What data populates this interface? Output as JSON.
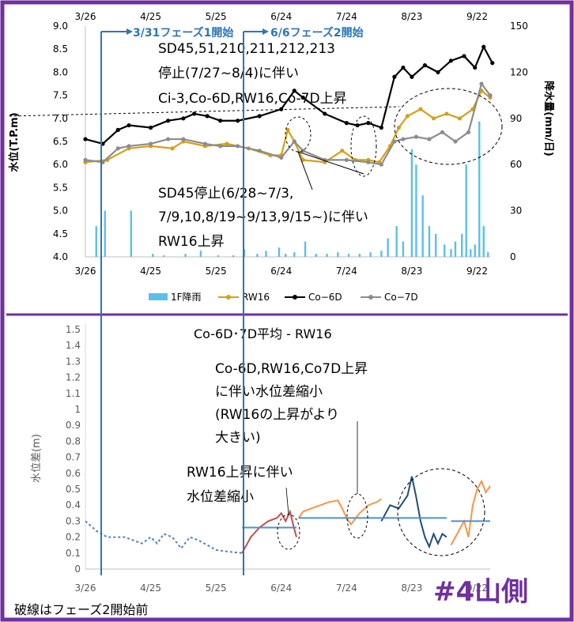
{
  "colors": {
    "frame": "#7030a0",
    "rain": "#5bc0e8",
    "rw16": "#d4a017",
    "co6d": "#000000",
    "co7d": "#8c8c8c",
    "phase": "#2e75b6",
    "pre": "#4f81bd",
    "seg1": "#c0504d",
    "seg2": "#f79646",
    "seg3": "#1f4e79",
    "avg": "#4f8fcf",
    "label_purple": "#7030a0"
  },
  "phase_labels": {
    "phase1": "3/31フェーズ1開始",
    "phase2": "6/6フェーズ2開始"
  },
  "annotations": {
    "top_1": "SD45,51,210,211,212,213",
    "top_2": "停止(7/27~8/4)に伴い",
    "top_3": "Ci-3,Co-6D,RW16,Co-7D上昇",
    "mid_1": "SD45停止(6/28~7/3,",
    "mid_2": "7/9,10,8/19~9/13,9/15~)に伴い",
    "mid_3": "RW16上昇",
    "bot_title": "Co-6D･7D平均 - RW16",
    "bot_1": "Co-6D,RW16,Co7D上昇",
    "bot_2": "に伴い水位差縮小",
    "bot_3": "(RW16の上昇がより",
    "bot_4": "大きい)",
    "bot_5": "RW16上昇に伴い",
    "bot_6": "水位差縮小",
    "footnote": "破線はフェーズ2開始前",
    "badge": "#4山側"
  },
  "chart_data": [
    {
      "type": "line",
      "title": "",
      "ylabel": "水位(T.P.m)",
      "y2label": "降水量(mm/日)",
      "xlabel": "",
      "ylim": [
        4.0,
        9.0
      ],
      "y2lim": [
        0,
        150
      ],
      "yticks": [
        "9.0",
        "8.5",
        "8.0",
        "7.5",
        "7.0",
        "6.5",
        "6.0",
        "5.5",
        "5.0",
        "4.5",
        "4.0"
      ],
      "y2ticks": [
        "150",
        "120",
        "90",
        "60",
        "30",
        "0"
      ],
      "xticks": [
        "3/26",
        "4/25",
        "5/25",
        "6/24",
        "7/24",
        "8/23",
        "9/22"
      ],
      "x_day_offsets_from_3_26": [
        0,
        30,
        60,
        90,
        120,
        150,
        180
      ],
      "legend": [
        "1F降雨",
        "RW16",
        "Co−6D",
        "Co−7D"
      ],
      "legend_position": "bottom",
      "rain_mm": [
        [
          5,
          20
        ],
        [
          9,
          30
        ],
        [
          21,
          30
        ],
        [
          31,
          2
        ],
        [
          36,
          1
        ],
        [
          46,
          2
        ],
        [
          53,
          4
        ],
        [
          61,
          1
        ],
        [
          68,
          1
        ],
        [
          73,
          5
        ],
        [
          79,
          2
        ],
        [
          83,
          4
        ],
        [
          89,
          6
        ],
        [
          92,
          2
        ],
        [
          96,
          3
        ],
        [
          101,
          10
        ],
        [
          106,
          2
        ],
        [
          111,
          2
        ],
        [
          116,
          3
        ],
        [
          121,
          2
        ],
        [
          126,
          2
        ],
        [
          131,
          3
        ],
        [
          136,
          4
        ],
        [
          139,
          12
        ],
        [
          143,
          20
        ],
        [
          146,
          10
        ],
        [
          150,
          70
        ],
        [
          152,
          60
        ],
        [
          155,
          40
        ],
        [
          158,
          20
        ],
        [
          161,
          15
        ],
        [
          165,
          8
        ],
        [
          168,
          5
        ],
        [
          170,
          10
        ],
        [
          173,
          15
        ],
        [
          175,
          60
        ],
        [
          177,
          5
        ],
        [
          179,
          8
        ],
        [
          181,
          88
        ],
        [
          183,
          20
        ],
        [
          185,
          3
        ]
      ],
      "series": [
        {
          "name": "RW16",
          "points": [
            [
              0,
              6.05
            ],
            [
              10,
              6.1
            ],
            [
              20,
              6.35
            ],
            [
              30,
              6.4
            ],
            [
              40,
              6.35
            ],
            [
              45,
              6.5
            ],
            [
              55,
              6.4
            ],
            [
              65,
              6.45
            ],
            [
              75,
              6.35
            ],
            [
              85,
              6.2
            ],
            [
              90,
              6.2
            ],
            [
              93,
              6.75
            ],
            [
              96,
              6.5
            ],
            [
              100,
              6.1
            ],
            [
              110,
              6.05
            ],
            [
              118,
              6.3
            ],
            [
              124,
              6.1
            ],
            [
              130,
              6.1
            ],
            [
              135,
              6.05
            ],
            [
              140,
              6.4
            ],
            [
              144,
              6.8
            ],
            [
              148,
              7.05
            ],
            [
              154,
              7.2
            ],
            [
              160,
              7.0
            ],
            [
              166,
              7.1
            ],
            [
              172,
              7.0
            ],
            [
              178,
              7.2
            ],
            [
              182,
              7.6
            ],
            [
              186,
              7.45
            ]
          ]
        },
        {
          "name": "Co−6D",
          "points": [
            [
              0,
              6.55
            ],
            [
              8,
              6.45
            ],
            [
              15,
              6.75
            ],
            [
              20,
              6.85
            ],
            [
              30,
              6.8
            ],
            [
              38,
              6.95
            ],
            [
              45,
              7.0
            ],
            [
              50,
              7.1
            ],
            [
              56,
              7.05
            ],
            [
              62,
              6.95
            ],
            [
              70,
              6.95
            ],
            [
              80,
              7.05
            ],
            [
              90,
              7.2
            ],
            [
              96,
              7.6
            ],
            [
              100,
              7.45
            ],
            [
              110,
              7.1
            ],
            [
              120,
              6.9
            ],
            [
              125,
              6.85
            ],
            [
              130,
              6.9
            ],
            [
              136,
              6.8
            ],
            [
              142,
              7.9
            ],
            [
              146,
              8.1
            ],
            [
              150,
              7.9
            ],
            [
              156,
              8.15
            ],
            [
              162,
              8.0
            ],
            [
              168,
              8.25
            ],
            [
              174,
              8.35
            ],
            [
              179,
              8.1
            ],
            [
              183,
              8.55
            ],
            [
              187,
              8.2
            ]
          ]
        },
        {
          "name": "Co−7D",
          "points": [
            [
              0,
              6.1
            ],
            [
              8,
              6.05
            ],
            [
              15,
              6.35
            ],
            [
              20,
              6.4
            ],
            [
              30,
              6.45
            ],
            [
              38,
              6.55
            ],
            [
              45,
              6.55
            ],
            [
              55,
              6.45
            ],
            [
              62,
              6.4
            ],
            [
              70,
              6.4
            ],
            [
              80,
              6.3
            ],
            [
              90,
              6.15
            ],
            [
              96,
              6.5
            ],
            [
              100,
              6.3
            ],
            [
              110,
              6.1
            ],
            [
              120,
              6.1
            ],
            [
              130,
              6.05
            ],
            [
              136,
              6.0
            ],
            [
              142,
              6.5
            ],
            [
              146,
              6.55
            ],
            [
              152,
              6.6
            ],
            [
              158,
              6.55
            ],
            [
              164,
              6.7
            ],
            [
              170,
              6.5
            ],
            [
              176,
              6.7
            ],
            [
              182,
              7.75
            ],
            [
              186,
              7.5
            ]
          ]
        }
      ]
    },
    {
      "type": "line",
      "title": "Co-6D･7D平均 - RW16",
      "ylabel": "水位差(m)",
      "xlabel": "",
      "ylim": [
        0,
        1.5
      ],
      "yticks": [
        "1.5",
        "1.4",
        "1.3",
        "1.2",
        "1.1",
        "1",
        "0.9",
        "0.8",
        "0.7",
        "0.6",
        "0.5",
        "0.4",
        "0.3",
        "0.2",
        "0.1",
        "0"
      ],
      "xticks": [
        "3/26",
        "4/25",
        "5/25",
        "6/24",
        "7/24",
        "8/23",
        "9/22"
      ],
      "x_day_offsets_from_3_26": [
        0,
        30,
        60,
        90,
        120,
        150,
        180
      ],
      "series": [
        {
          "name": "",
          "style": "dashed",
          "points": [
            [
              0,
              0.3
            ],
            [
              5,
              0.24
            ],
            [
              10,
              0.2
            ],
            [
              18,
              0.2
            ],
            [
              26,
              0.16
            ],
            [
              30,
              0.2
            ],
            [
              33,
              0.16
            ],
            [
              36,
              0.22
            ],
            [
              40,
              0.2
            ],
            [
              44,
              0.13
            ],
            [
              48,
              0.2
            ],
            [
              52,
              0.18
            ],
            [
              60,
              0.12
            ],
            [
              65,
              0.11
            ],
            [
              72,
              0.1
            ]
          ]
        },
        {
          "name": "",
          "style": "solid",
          "points": [
            [
              72,
              0.1
            ],
            [
              76,
              0.2
            ],
            [
              80,
              0.26
            ],
            [
              84,
              0.3
            ],
            [
              88,
              0.32
            ],
            [
              90,
              0.35
            ],
            [
              92,
              0.3
            ],
            [
              94,
              0.36
            ],
            [
              96,
              0.25
            ],
            [
              97,
              0.2
            ]
          ]
        },
        {
          "name": "",
          "style": "solid",
          "points": [
            [
              98,
              0.32
            ],
            [
              100,
              0.36
            ],
            [
              104,
              0.38
            ],
            [
              108,
              0.4
            ],
            [
              112,
              0.42
            ],
            [
              116,
              0.43
            ],
            [
              118,
              0.38
            ],
            [
              120,
              0.32
            ],
            [
              122,
              0.28
            ],
            [
              126,
              0.35
            ],
            [
              130,
              0.4
            ],
            [
              134,
              0.42
            ],
            [
              136,
              0.44
            ]
          ]
        },
        {
          "name": "",
          "style": "solid",
          "points": [
            [
              136,
              0.3
            ],
            [
              140,
              0.4
            ],
            [
              144,
              0.38
            ],
            [
              148,
              0.46
            ],
            [
              150,
              0.58
            ],
            [
              152,
              0.45
            ],
            [
              154,
              0.3
            ],
            [
              156,
              0.2
            ],
            [
              158,
              0.14
            ],
            [
              160,
              0.22
            ],
            [
              162,
              0.16
            ],
            [
              164,
              0.22
            ],
            [
              166,
              0.2
            ]
          ]
        },
        {
          "name": "",
          "style": "solid",
          "points": [
            [
              168,
              0.15
            ],
            [
              170,
              0.2
            ],
            [
              172,
              0.25
            ],
            [
              174,
              0.3
            ],
            [
              176,
              0.2
            ],
            [
              178,
              0.4
            ],
            [
              180,
              0.5
            ],
            [
              182,
              0.55
            ],
            [
              184,
              0.48
            ],
            [
              186,
              0.52
            ]
          ]
        }
      ],
      "averages": [
        {
          "from": 72,
          "to": 97,
          "value": 0.26
        },
        {
          "from": 98,
          "to": 136,
          "value": 0.32
        },
        {
          "from": 136,
          "to": 166,
          "value": 0.32
        },
        {
          "from": 168,
          "to": 186,
          "value": 0.3
        }
      ]
    }
  ]
}
